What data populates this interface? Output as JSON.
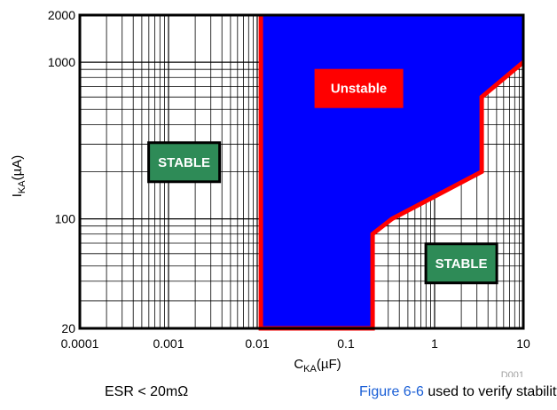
{
  "chart_data": {
    "type": "area",
    "xlabel": "C",
    "xlabel_sub": "KA",
    "xlabel_unit": "(µF)",
    "ylabel": "I",
    "ylabel_sub": "KA",
    "ylabel_unit": "(µA)",
    "x_scale": "log",
    "y_scale": "log",
    "xlim": [
      0.0001,
      10
    ],
    "ylim": [
      20,
      2000
    ],
    "x_ticks": [
      {
        "value": 0.0001,
        "label": "0.0001"
      },
      {
        "value": 0.001,
        "label": "0.001"
      },
      {
        "value": 0.01,
        "label": "0.01"
      },
      {
        "value": 0.1,
        "label": "0.1"
      },
      {
        "value": 1,
        "label": "1"
      },
      {
        "value": 10,
        "label": "10"
      }
    ],
    "y_ticks": [
      {
        "value": 20,
        "label": "20"
      },
      {
        "value": 100,
        "label": "100"
      },
      {
        "value": 1000,
        "label": "1000"
      },
      {
        "value": 2000,
        "label": "2000"
      }
    ],
    "grid": true,
    "boundary": [
      {
        "x": 0.011,
        "y": 2000
      },
      {
        "x": 0.011,
        "y": 20
      },
      {
        "x": 0.2,
        "y": 20
      },
      {
        "x": 0.2,
        "y": 80
      },
      {
        "x": 0.33,
        "y": 100
      },
      {
        "x": 3.4,
        "y": 200
      },
      {
        "x": 3.4,
        "y": 600
      },
      {
        "x": 10,
        "y": 1000
      }
    ],
    "unstable_region_color": "#0000ff",
    "boundary_color": "#ff0000",
    "regions": [
      {
        "label": "Unstable",
        "box_color": "#ff0000",
        "x": 0.14,
        "y": 680
      },
      {
        "label": "STABLE",
        "box_color": "#2e8b57",
        "x": 0.0015,
        "y": 230
      },
      {
        "label": "STABLE",
        "box_color": "#2e8b57",
        "x": 2.0,
        "y": 52
      }
    ],
    "doc_id": "D001"
  },
  "footer": {
    "condition": "ESR < 20mΩ",
    "note_link": "Figure 6-6",
    "note_text": " used to verify stability"
  }
}
